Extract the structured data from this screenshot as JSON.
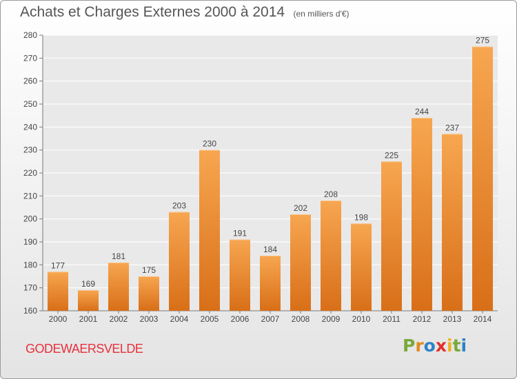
{
  "title": "Achats et Charges Externes 2000 à 2014",
  "subtitle": "(en milliers d'€)",
  "commune": "GODEWAERSVELDE",
  "logo": {
    "letters": [
      "P",
      "r",
      "o",
      "x",
      "i",
      "t",
      "i"
    ],
    "colors": [
      "#7aa83a",
      "#e08a20",
      "#2c82c9",
      "#e0302c",
      "#f0b020",
      "#7aa83a",
      "#2c82c9"
    ]
  },
  "colors": {
    "bar_light": "#f7a650",
    "bar_dark": "#d86f18",
    "title": "#555555",
    "commune": "#e8303c"
  },
  "chart_data": {
    "type": "bar",
    "title": "Achats et Charges Externes 2000 à 2014",
    "subtitle": "(en milliers d'€)",
    "categories": [
      "2000",
      "2001",
      "2002",
      "2003",
      "2004",
      "2005",
      "2006",
      "2007",
      "2008",
      "2009",
      "2010",
      "2011",
      "2012",
      "2013",
      "2014"
    ],
    "values": [
      177,
      169,
      181,
      175,
      203,
      230,
      191,
      184,
      202,
      208,
      198,
      225,
      244,
      237,
      275
    ],
    "ylim": [
      160,
      280
    ],
    "yticks": [
      160,
      170,
      180,
      190,
      200,
      210,
      220,
      230,
      240,
      250,
      260,
      270,
      280
    ],
    "grid": true,
    "xlabel": "",
    "ylabel": ""
  }
}
